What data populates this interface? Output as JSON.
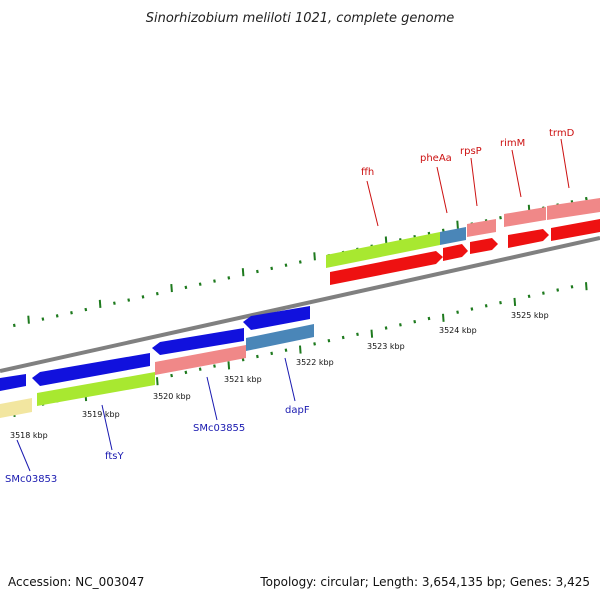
{
  "title": "Sinorhizobium meliloti 1021, complete genome",
  "footer": {
    "accession": "Accession: NC_003047",
    "summary": "Topology: circular; Length: 3,654,135 bp; Genes: 3,425"
  },
  "scale_labels": [
    "3518 kbp",
    "3519 kbp",
    "3520 kbp",
    "3521 kbp",
    "3522 kbp",
    "3523 kbp",
    "3524 kbp",
    "3525 kbp"
  ],
  "gene_labels": {
    "top": [
      "ffh",
      "pheAa",
      "rpsP",
      "rimM",
      "trmD"
    ],
    "bottom": [
      "SMc03853",
      "ftsY",
      "SMc03855",
      "dapF"
    ]
  },
  "colors": {
    "backbone": "#808080",
    "tick": "#1e7a1e",
    "forward_cds": "#ee1111",
    "reverse_cds": "#1111dd",
    "gene_light_red": "#f08888",
    "gene_green": "#a8e830",
    "gene_steel": "#4a86b8",
    "gene_yellow": "#f2e6a0",
    "top_label": "#cc1111",
    "bottom_label": "#1a1ab0"
  }
}
